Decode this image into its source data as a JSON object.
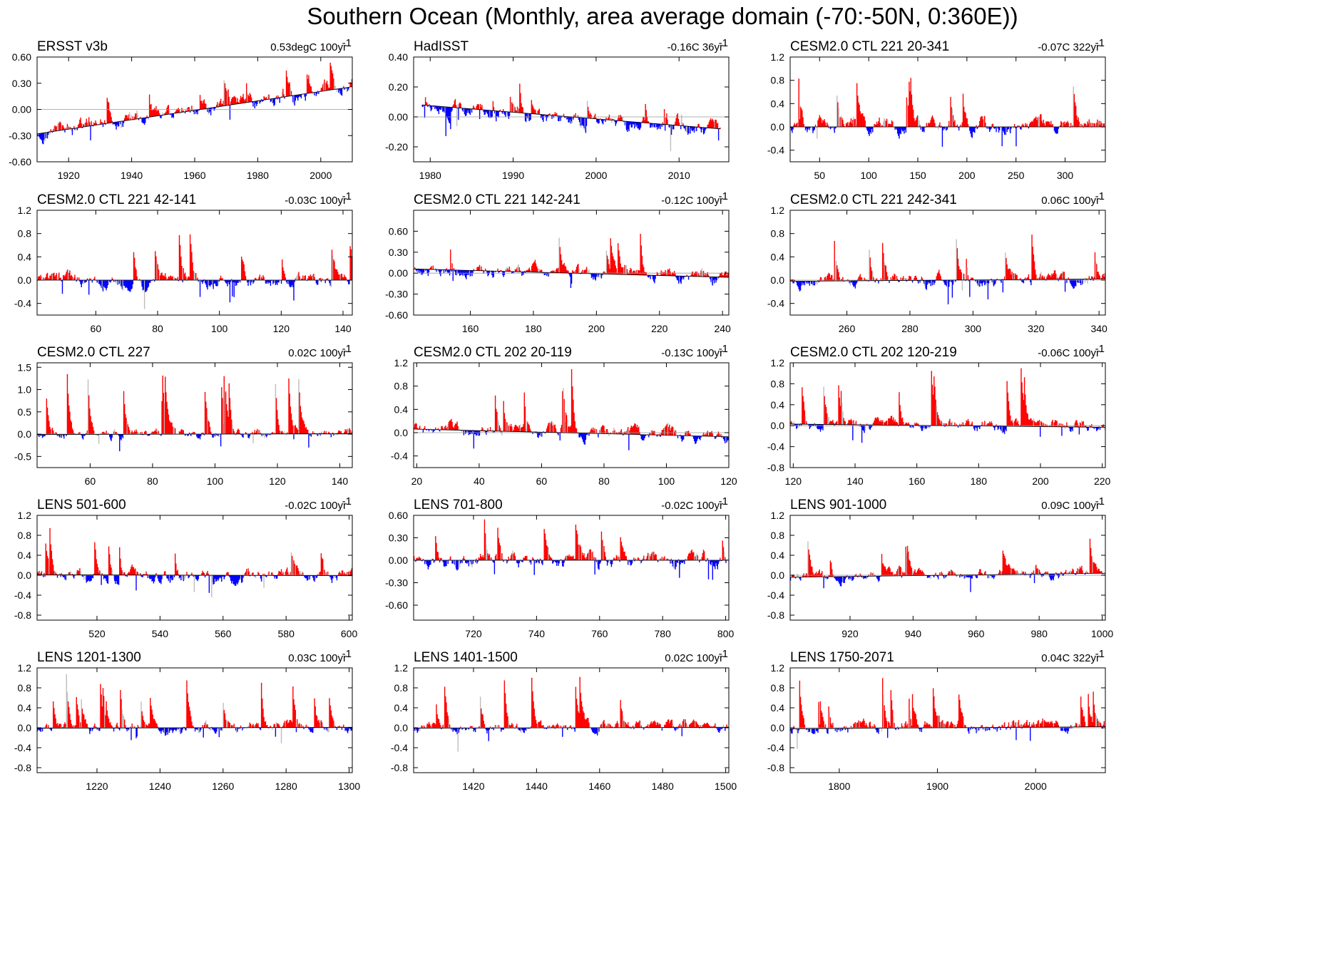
{
  "title": "Southern Ocean (Monthly, area average domain (-70:-50N, 0:360E))",
  "colors": {
    "positive": "#ff0000",
    "negative": "#0000ff",
    "intermediate": "#bdbdbd",
    "axis": "#000000",
    "zero_line": "#999999"
  },
  "chart_data": [
    {
      "type": "area",
      "title": "ERSST v3b",
      "trend_text": "0.53degC 100yr",
      "trend_sup": "-1",
      "xlim": [
        1910,
        2010
      ],
      "xticks": [
        1920,
        1940,
        1960,
        1980,
        2000
      ],
      "ylim": [
        -0.6,
        0.6
      ],
      "yticks": [
        -0.6,
        -0.3,
        0.0,
        0.3,
        0.6
      ],
      "ytick_labels": [
        "-0.60",
        "-0.30",
        "0.00",
        "0.30",
        "0.60"
      ],
      "trend_line": [
        [
          1910,
          -0.28
        ],
        [
          2010,
          0.26
        ]
      ],
      "noise_scale": 0.12,
      "spike_max": 0.32
    },
    {
      "type": "area",
      "title": "HadISST",
      "trend_text": "-0.16C 36yr",
      "trend_sup": "-1",
      "xlim": [
        1978,
        2016
      ],
      "xticks": [
        1980,
        1990,
        2000,
        2010
      ],
      "ylim": [
        -0.3,
        0.4
      ],
      "yticks": [
        -0.2,
        0.0,
        0.2,
        0.4
      ],
      "ytick_labels": [
        "-0.20",
        "0.00",
        "0.20",
        "0.40"
      ],
      "data_x_range": [
        1979,
        2015
      ],
      "trend_line": [
        [
          1979,
          0.08
        ],
        [
          2015,
          -0.08
        ]
      ],
      "noise_scale": 0.07,
      "spike_max": 0.2
    },
    {
      "type": "area",
      "title": "CESM2.0 CTL 221 20-341",
      "trend_text": "-0.07C 322yr",
      "trend_sup": "-1",
      "xlim": [
        20,
        341
      ],
      "xticks": [
        50,
        100,
        150,
        200,
        250,
        300
      ],
      "ylim": [
        -0.6,
        1.2
      ],
      "yticks": [
        -0.4,
        0.0,
        0.4,
        0.8,
        1.2
      ],
      "ytick_labels": [
        "-0.4",
        "0.0",
        "0.4",
        "0.8",
        "1.2"
      ],
      "trend_line": [
        [
          20,
          0.0
        ],
        [
          341,
          0.0
        ]
      ],
      "noise_scale": 0.18,
      "spike_max": 0.9
    },
    {
      "type": "area",
      "title": "CESM2.0 CTL 221 42-141",
      "trend_text": "-0.03C 100yr",
      "trend_sup": "-1",
      "xlim": [
        41,
        143
      ],
      "xticks": [
        60,
        80,
        100,
        120,
        140
      ],
      "ylim": [
        -0.6,
        1.2
      ],
      "yticks": [
        -0.4,
        0.0,
        0.4,
        0.8,
        1.2
      ],
      "ytick_labels": [
        "-0.4",
        "0.0",
        "0.4",
        "0.8",
        "1.2"
      ],
      "trend_line": [
        [
          41,
          0.0
        ],
        [
          143,
          0.0
        ]
      ],
      "noise_scale": 0.15,
      "spike_max": 0.9
    },
    {
      "type": "area",
      "title": "CESM2.0 CTL 221 142-241",
      "trend_text": "-0.12C 100yr",
      "trend_sup": "-1",
      "xlim": [
        142,
        242
      ],
      "xticks": [
        160,
        180,
        200,
        220,
        240
      ],
      "ylim": [
        -0.6,
        0.9
      ],
      "yticks": [
        -0.6,
        -0.3,
        0.0,
        0.3,
        0.6
      ],
      "ytick_labels": [
        "-0.60",
        "-0.30",
        "0.00",
        "0.30",
        "0.60"
      ],
      "trend_line": [
        [
          142,
          0.06
        ],
        [
          242,
          -0.06
        ]
      ],
      "noise_scale": 0.12,
      "spike_max": 0.7
    },
    {
      "type": "area",
      "title": "CESM2.0 CTL 221 242-341",
      "trend_text": "0.06C 100yr",
      "trend_sup": "-1",
      "xlim": [
        242,
        342
      ],
      "xticks": [
        260,
        280,
        300,
        320,
        340
      ],
      "ylim": [
        -0.6,
        1.2
      ],
      "yticks": [
        -0.4,
        0.0,
        0.4,
        0.8,
        1.2
      ],
      "ytick_labels": [
        "-0.4",
        "0.0",
        "0.4",
        "0.8",
        "1.2"
      ],
      "trend_line": [
        [
          242,
          -0.02
        ],
        [
          342,
          0.02
        ]
      ],
      "noise_scale": 0.15,
      "spike_max": 0.85
    },
    {
      "type": "area",
      "title": "CESM2.0 CTL 227",
      "trend_text": "0.02C 100yr",
      "trend_sup": "-1",
      "xlim": [
        43,
        144
      ],
      "xticks": [
        60,
        80,
        100,
        120,
        140
      ],
      "ylim": [
        -0.75,
        1.6
      ],
      "yticks": [
        -0.5,
        0.0,
        0.5,
        1.0,
        1.5
      ],
      "ytick_labels": [
        "-0.5",
        "0.0",
        "0.5",
        "1.0",
        "1.5"
      ],
      "trend_line": [
        [
          43,
          -0.01
        ],
        [
          144,
          0.01
        ]
      ],
      "noise_scale": 0.15,
      "spike_max": 1.35
    },
    {
      "type": "area",
      "title": "CESM2.0 CTL 202 20-119",
      "trend_text": "-0.13C 100yr",
      "trend_sup": "-1",
      "xlim": [
        19,
        120
      ],
      "xticks": [
        20,
        40,
        60,
        80,
        100,
        120
      ],
      "ylim": [
        -0.6,
        1.2
      ],
      "yticks": [
        -0.4,
        0.0,
        0.4,
        0.8,
        1.2
      ],
      "ytick_labels": [
        "-0.4",
        "0.0",
        "0.4",
        "0.8",
        "1.2"
      ],
      "trend_line": [
        [
          20,
          0.06
        ],
        [
          120,
          -0.07
        ]
      ],
      "noise_scale": 0.15,
      "spike_max": 1.05
    },
    {
      "type": "area",
      "title": "CESM2.0 CTL 202 120-219",
      "trend_text": "-0.06C 100yr",
      "trend_sup": "-1",
      "xlim": [
        119,
        221
      ],
      "xticks": [
        120,
        140,
        160,
        180,
        200,
        220
      ],
      "ylim": [
        -0.8,
        1.2
      ],
      "yticks": [
        -0.8,
        -0.4,
        0.0,
        0.4,
        0.8,
        1.2
      ],
      "ytick_labels": [
        "-0.8",
        "-0.4",
        "0.0",
        "0.4",
        "0.8",
        "1.2"
      ],
      "trend_line": [
        [
          120,
          0.03
        ],
        [
          220,
          -0.03
        ]
      ],
      "noise_scale": 0.15,
      "spike_max": 1.15
    },
    {
      "type": "area",
      "title": "LENS 501-600",
      "trend_text": "-0.02C 100yr",
      "trend_sup": "-1",
      "xlim": [
        501,
        601
      ],
      "xticks": [
        520,
        540,
        560,
        580,
        600
      ],
      "ylim": [
        -0.9,
        1.2
      ],
      "yticks": [
        -0.8,
        -0.4,
        0.0,
        0.4,
        0.8,
        1.2
      ],
      "ytick_labels": [
        "-0.8",
        "-0.4",
        "0.0",
        "0.4",
        "0.8",
        "1.2"
      ],
      "trend_line": [
        [
          501,
          0.01
        ],
        [
          601,
          -0.01
        ]
      ],
      "noise_scale": 0.18,
      "spike_max": 0.85
    },
    {
      "type": "area",
      "title": "LENS 701-800",
      "trend_text": "-0.02C 100yr",
      "trend_sup": "-1",
      "xlim": [
        701,
        801
      ],
      "xticks": [
        720,
        740,
        760,
        780,
        800
      ],
      "ylim": [
        -0.8,
        0.6
      ],
      "yticks": [
        -0.6,
        -0.3,
        0.0,
        0.3,
        0.6
      ],
      "ytick_labels": [
        "-0.60",
        "-0.30",
        "0.00",
        "0.30",
        "0.60"
      ],
      "trend_line": [
        [
          701,
          0.0
        ],
        [
          801,
          0.0
        ]
      ],
      "noise_scale": 0.14,
      "spike_max": 0.55
    },
    {
      "type": "area",
      "title": "LENS 901-1000",
      "trend_text": "0.09C 100yr",
      "trend_sup": "-1",
      "xlim": [
        901,
        1001
      ],
      "xticks": [
        920,
        940,
        960,
        980,
        1000
      ],
      "ylim": [
        -0.9,
        1.2
      ],
      "yticks": [
        -0.8,
        -0.4,
        0.0,
        0.4,
        0.8,
        1.2
      ],
      "ytick_labels": [
        "-0.8",
        "-0.4",
        "0.0",
        "0.4",
        "0.8",
        "1.2"
      ],
      "trend_line": [
        [
          901,
          -0.04
        ],
        [
          1001,
          0.04
        ]
      ],
      "noise_scale": 0.15,
      "spike_max": 0.75
    },
    {
      "type": "area",
      "title": "LENS 1201-1300",
      "trend_text": "0.03C 100yr",
      "trend_sup": "-1",
      "xlim": [
        1201,
        1301
      ],
      "xticks": [
        1220,
        1240,
        1260,
        1280,
        1300
      ],
      "ylim": [
        -0.9,
        1.2
      ],
      "yticks": [
        -0.8,
        -0.4,
        0.0,
        0.4,
        0.8,
        1.2
      ],
      "ytick_labels": [
        "-0.8",
        "-0.4",
        "0.0",
        "0.4",
        "0.8",
        "1.2"
      ],
      "trend_line": [
        [
          1201,
          -0.01
        ],
        [
          1301,
          0.01
        ]
      ],
      "noise_scale": 0.15,
      "spike_max": 1.05
    },
    {
      "type": "area",
      "title": "LENS 1401-1500",
      "trend_text": "0.02C 100yr",
      "trend_sup": "-1",
      "xlim": [
        1401,
        1501
      ],
      "xticks": [
        1420,
        1440,
        1460,
        1480,
        1500
      ],
      "ylim": [
        -0.9,
        1.2
      ],
      "yticks": [
        -0.8,
        -0.4,
        0.0,
        0.4,
        0.8,
        1.2
      ],
      "ytick_labels": [
        "-0.8",
        "-0.4",
        "0.0",
        "0.4",
        "0.8",
        "1.2"
      ],
      "trend_line": [
        [
          1401,
          -0.01
        ],
        [
          1501,
          0.01
        ]
      ],
      "noise_scale": 0.15,
      "spike_max": 1.0
    },
    {
      "type": "area",
      "title": "LENS 1750-2071",
      "trend_text": "0.04C 322yr",
      "trend_sup": "-1",
      "xlim": [
        1750,
        2071
      ],
      "xticks": [
        1800,
        1900,
        2000
      ],
      "ylim": [
        -0.9,
        1.2
      ],
      "yticks": [
        -0.8,
        -0.4,
        0.0,
        0.4,
        0.8,
        1.2
      ],
      "ytick_labels": [
        "-0.8",
        "-0.4",
        "0.0",
        "0.4",
        "0.8",
        "1.2"
      ],
      "trend_line": [
        [
          1750,
          -0.02
        ],
        [
          2071,
          0.02
        ]
      ],
      "noise_scale": 0.18,
      "spike_max": 1.1
    }
  ]
}
